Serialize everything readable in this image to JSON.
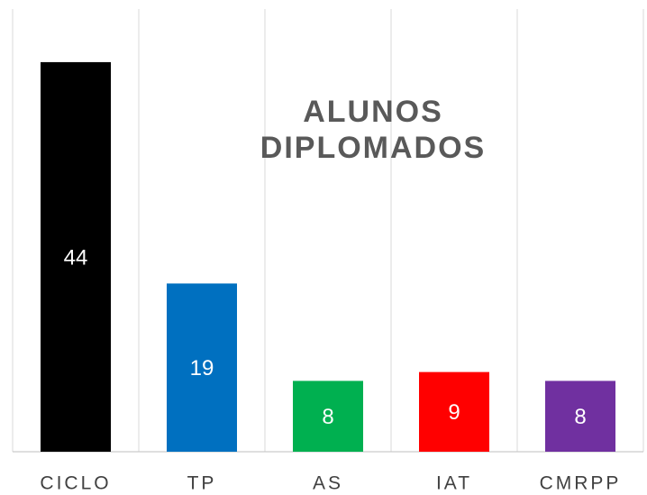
{
  "chart_data": {
    "type": "bar",
    "title": "ALUNOS DIPLOMADOS",
    "categories": [
      "CICLO",
      "TP",
      "AS",
      "IAT",
      "CMRPP"
    ],
    "values": [
      44,
      19,
      8,
      9,
      8
    ],
    "colors": [
      "#000000",
      "#0070c0",
      "#00b050",
      "#ff0000",
      "#7030a0"
    ],
    "ylim": [
      0,
      50
    ],
    "grid": true
  }
}
